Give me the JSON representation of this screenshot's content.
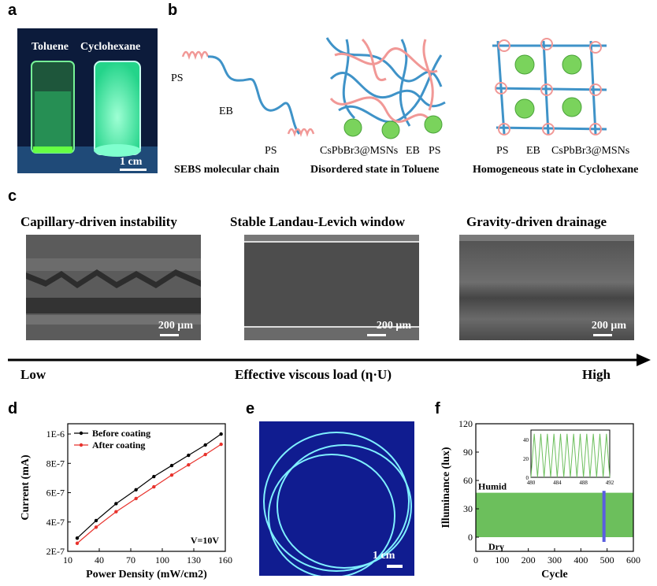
{
  "panel_labels": {
    "a": "a",
    "b": "b",
    "c": "c",
    "d": "d",
    "e": "e",
    "f": "f"
  },
  "panel_a": {
    "left_vial": "Toluene",
    "right_vial": "Cyclohexane",
    "scale_bar": "1 cm"
  },
  "panel_b": {
    "ps_top": "PS",
    "eb": "EB",
    "ps_bottom": "PS",
    "caption1": "SEBS molecular chain",
    "mid_label_np": "CsPbBr3@MSNs",
    "mid_label_eb": "EB",
    "mid_label_ps": "PS",
    "caption2": "Disordered state in Toluene",
    "right_label_ps": "PS",
    "right_label_eb": "EB",
    "right_label_np": "CsPbBr3@MSNs",
    "caption3": "Homogeneous state in Cyclohexane"
  },
  "panel_c": {
    "titles": [
      "Capillary-driven instability",
      "Stable Landau-Levich window",
      "Gravity-driven drainage"
    ],
    "scale_bars": [
      "200 μm",
      "200 μm",
      "200 μm"
    ],
    "axis_low": "Low",
    "axis_label": "Effective viscous load (η·U)",
    "axis_high": "High"
  },
  "panel_e": {
    "scale_bar": "1 cm"
  },
  "chart_data": [
    {
      "type": "line",
      "panel": "d",
      "xlabel": "Power Density (mW/cm2)",
      "ylabel": "Current (mA)",
      "xlim": [
        10,
        160
      ],
      "ylim": [
        2e-07,
        1.07e-06
      ],
      "xticks": [
        10,
        40,
        70,
        100,
        130,
        160
      ],
      "yticks": [
        2e-07,
        4e-07,
        6e-07,
        8e-07,
        1e-06
      ],
      "ytick_labels": [
        "2E-7",
        "4E-7",
        "6E-7",
        "8E-7",
        "1E-6"
      ],
      "annotation": "V=10V",
      "legend": "top-left",
      "series": [
        {
          "name": "Before coating",
          "color": "#000000",
          "x": [
            19,
            37,
            56,
            75,
            92,
            109,
            125,
            141,
            156
          ],
          "y": [
            2.9e-07,
            4.1e-07,
            5.25e-07,
            6.2e-07,
            7.1e-07,
            7.85e-07,
            8.55e-07,
            9.25e-07,
            1e-06
          ]
        },
        {
          "name": "After coating",
          "color": "#e8322c",
          "x": [
            19,
            37,
            56,
            75,
            92,
            109,
            125,
            141,
            156
          ],
          "y": [
            2.55e-07,
            3.65e-07,
            4.7e-07,
            5.6e-07,
            6.4e-07,
            7.2e-07,
            7.9e-07,
            8.6e-07,
            9.3e-07
          ]
        }
      ]
    },
    {
      "type": "area",
      "panel": "f",
      "xlabel": "Cycle",
      "ylabel": "Illuminance (lux)",
      "xlim": [
        0,
        600
      ],
      "ylim": [
        -15,
        120
      ],
      "xticks": [
        0,
        100,
        200,
        300,
        400,
        500,
        600
      ],
      "yticks": [
        0,
        30,
        60,
        90,
        120
      ],
      "band": {
        "low": 0,
        "high": 47,
        "color": "#6cbf5c"
      },
      "highlight": {
        "x": 488,
        "color": "#5a5ee0"
      },
      "labels": {
        "high": "Humid",
        "low": "Dry"
      },
      "inset": {
        "xlim": [
          480,
          492
        ],
        "ylim": [
          0,
          50
        ],
        "xticks": [
          480,
          484,
          488,
          492
        ],
        "yticks": [
          0,
          20,
          40
        ],
        "color": "#6cbf5c",
        "x": [
          480,
          480.5,
          481,
          481.5,
          482,
          482.5,
          483,
          483.5,
          484,
          484.5,
          485,
          485.5,
          486,
          486.5,
          487,
          487.5,
          488,
          488.5,
          489,
          489.5,
          490,
          490.5,
          491,
          491.5,
          492
        ],
        "y": [
          0,
          46,
          0,
          46,
          0,
          46,
          0,
          46,
          0,
          46,
          0,
          46,
          0,
          46,
          0,
          46,
          0,
          46,
          0,
          46,
          0,
          46,
          0,
          46,
          0
        ]
      }
    }
  ]
}
